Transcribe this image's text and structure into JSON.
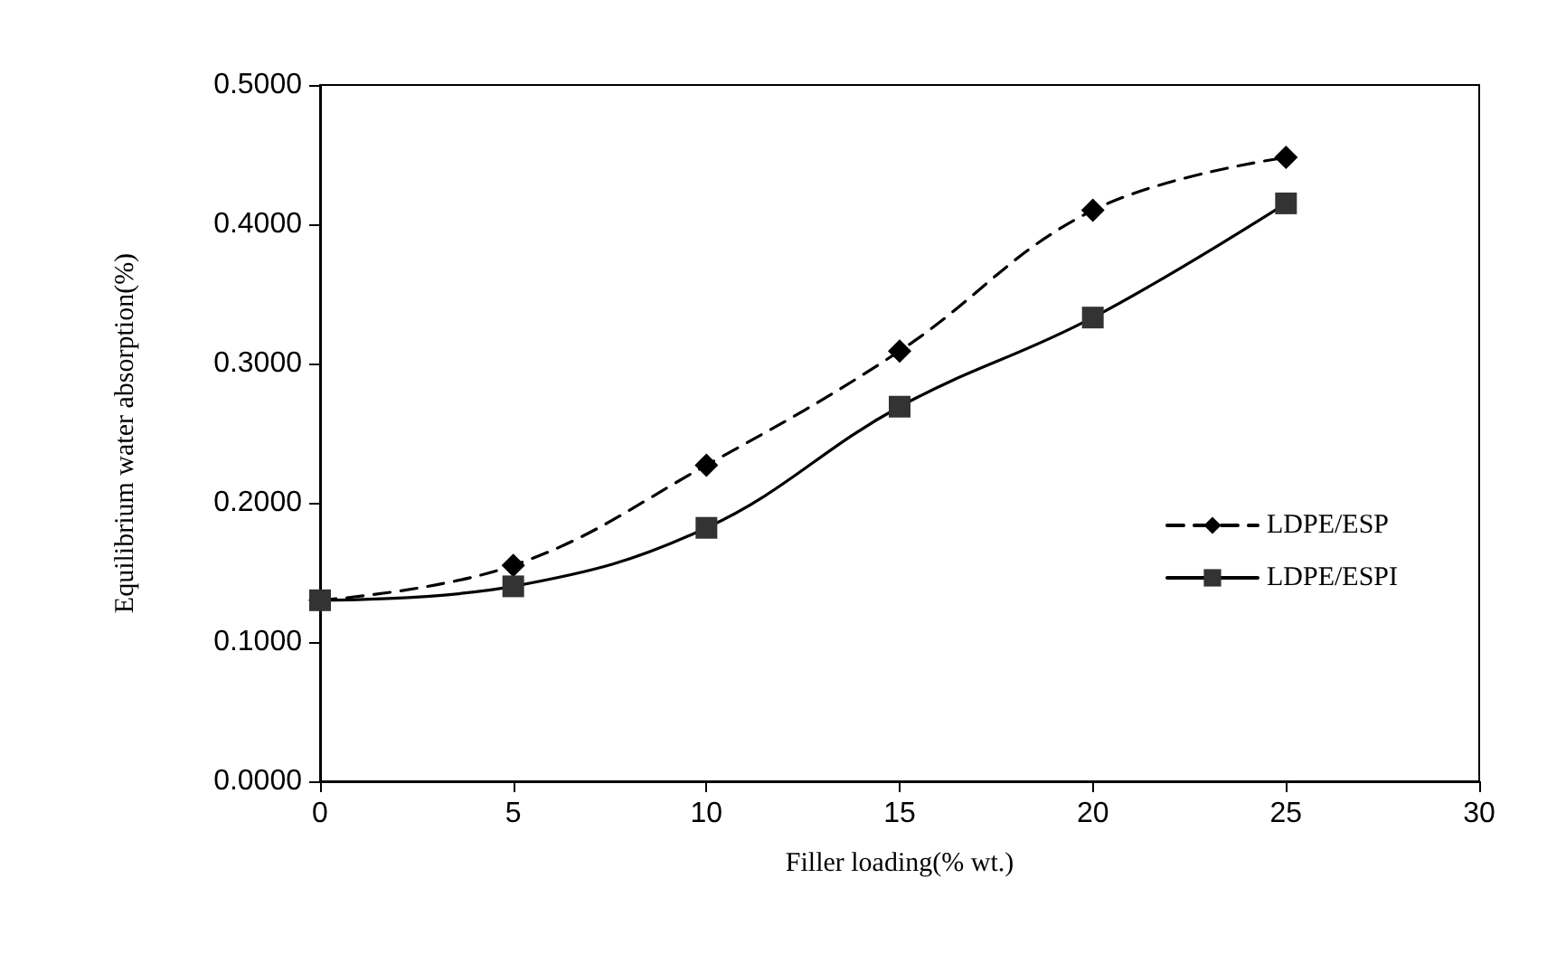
{
  "chart_data": {
    "type": "line",
    "xlabel": "Filler loading(% wt.)",
    "ylabel": "Equilibrium water absorption(%)",
    "x": [
      0,
      5,
      10,
      15,
      20,
      25
    ],
    "series": [
      {
        "name": "LDPE/ESP",
        "color": "#000000",
        "values": [
          0.13,
          0.155,
          0.227,
          0.309,
          0.41,
          0.448
        ],
        "marker": "diamond",
        "line_style": "dashed"
      },
      {
        "name": "LDPE/ESPI",
        "color": "#333333",
        "values": [
          0.13,
          0.14,
          0.182,
          0.269,
          0.333,
          0.415
        ],
        "marker": "square",
        "line_style": "solid"
      }
    ],
    "xlim": [
      0,
      30
    ],
    "xticks": [
      0,
      5,
      10,
      15,
      20,
      25,
      30
    ],
    "ylim": [
      0,
      0.5
    ],
    "yticks": [
      {
        "value": 0,
        "label": "0.0000"
      },
      {
        "value": 0.1,
        "label": "0.1000"
      },
      {
        "value": 0.2,
        "label": "0.2000"
      },
      {
        "value": 0.3,
        "label": "0.3000"
      },
      {
        "value": 0.4,
        "label": "0.4000"
      },
      {
        "value": 0.5,
        "label": "0.5000"
      }
    ],
    "grid": false,
    "legend": "right"
  }
}
